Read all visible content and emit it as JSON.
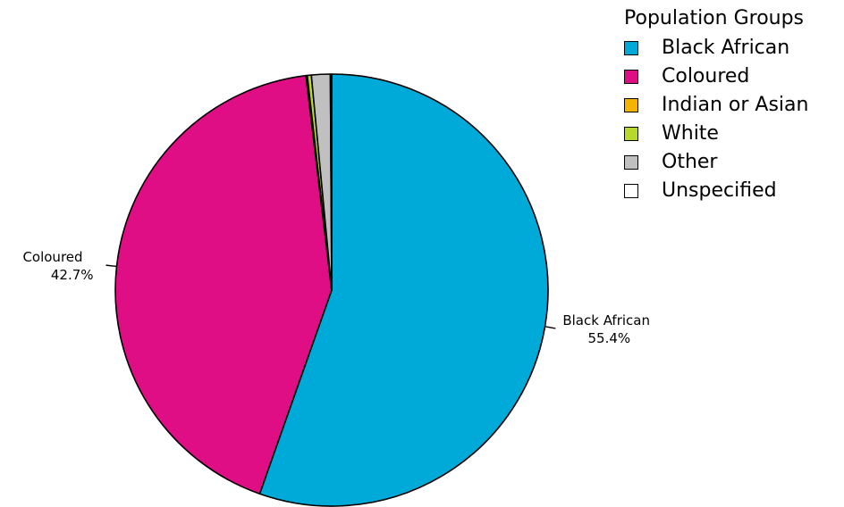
{
  "chart_data": {
    "type": "pie",
    "legend": {
      "title": "Population Groups",
      "position": "top-right"
    },
    "slices": [
      {
        "name": "Black African",
        "value": 55.4,
        "color": "#00AAD8",
        "label": "Black African",
        "pct_label": "55.4%"
      },
      {
        "name": "Coloured",
        "value": 42.7,
        "color": "#E00E84",
        "label": "Coloured",
        "pct_label": "42.7%"
      },
      {
        "name": "Indian or Asian",
        "value": 0.1,
        "color": "#F5B400"
      },
      {
        "name": "White",
        "value": 0.3,
        "color": "#B8D82C"
      },
      {
        "name": "Other",
        "value": 1.4,
        "color": "#C0C0C0"
      },
      {
        "name": "Unspecified",
        "value": 0.1,
        "color": "#FFFFFF"
      }
    ],
    "start": "top",
    "direction": "clockwise"
  }
}
